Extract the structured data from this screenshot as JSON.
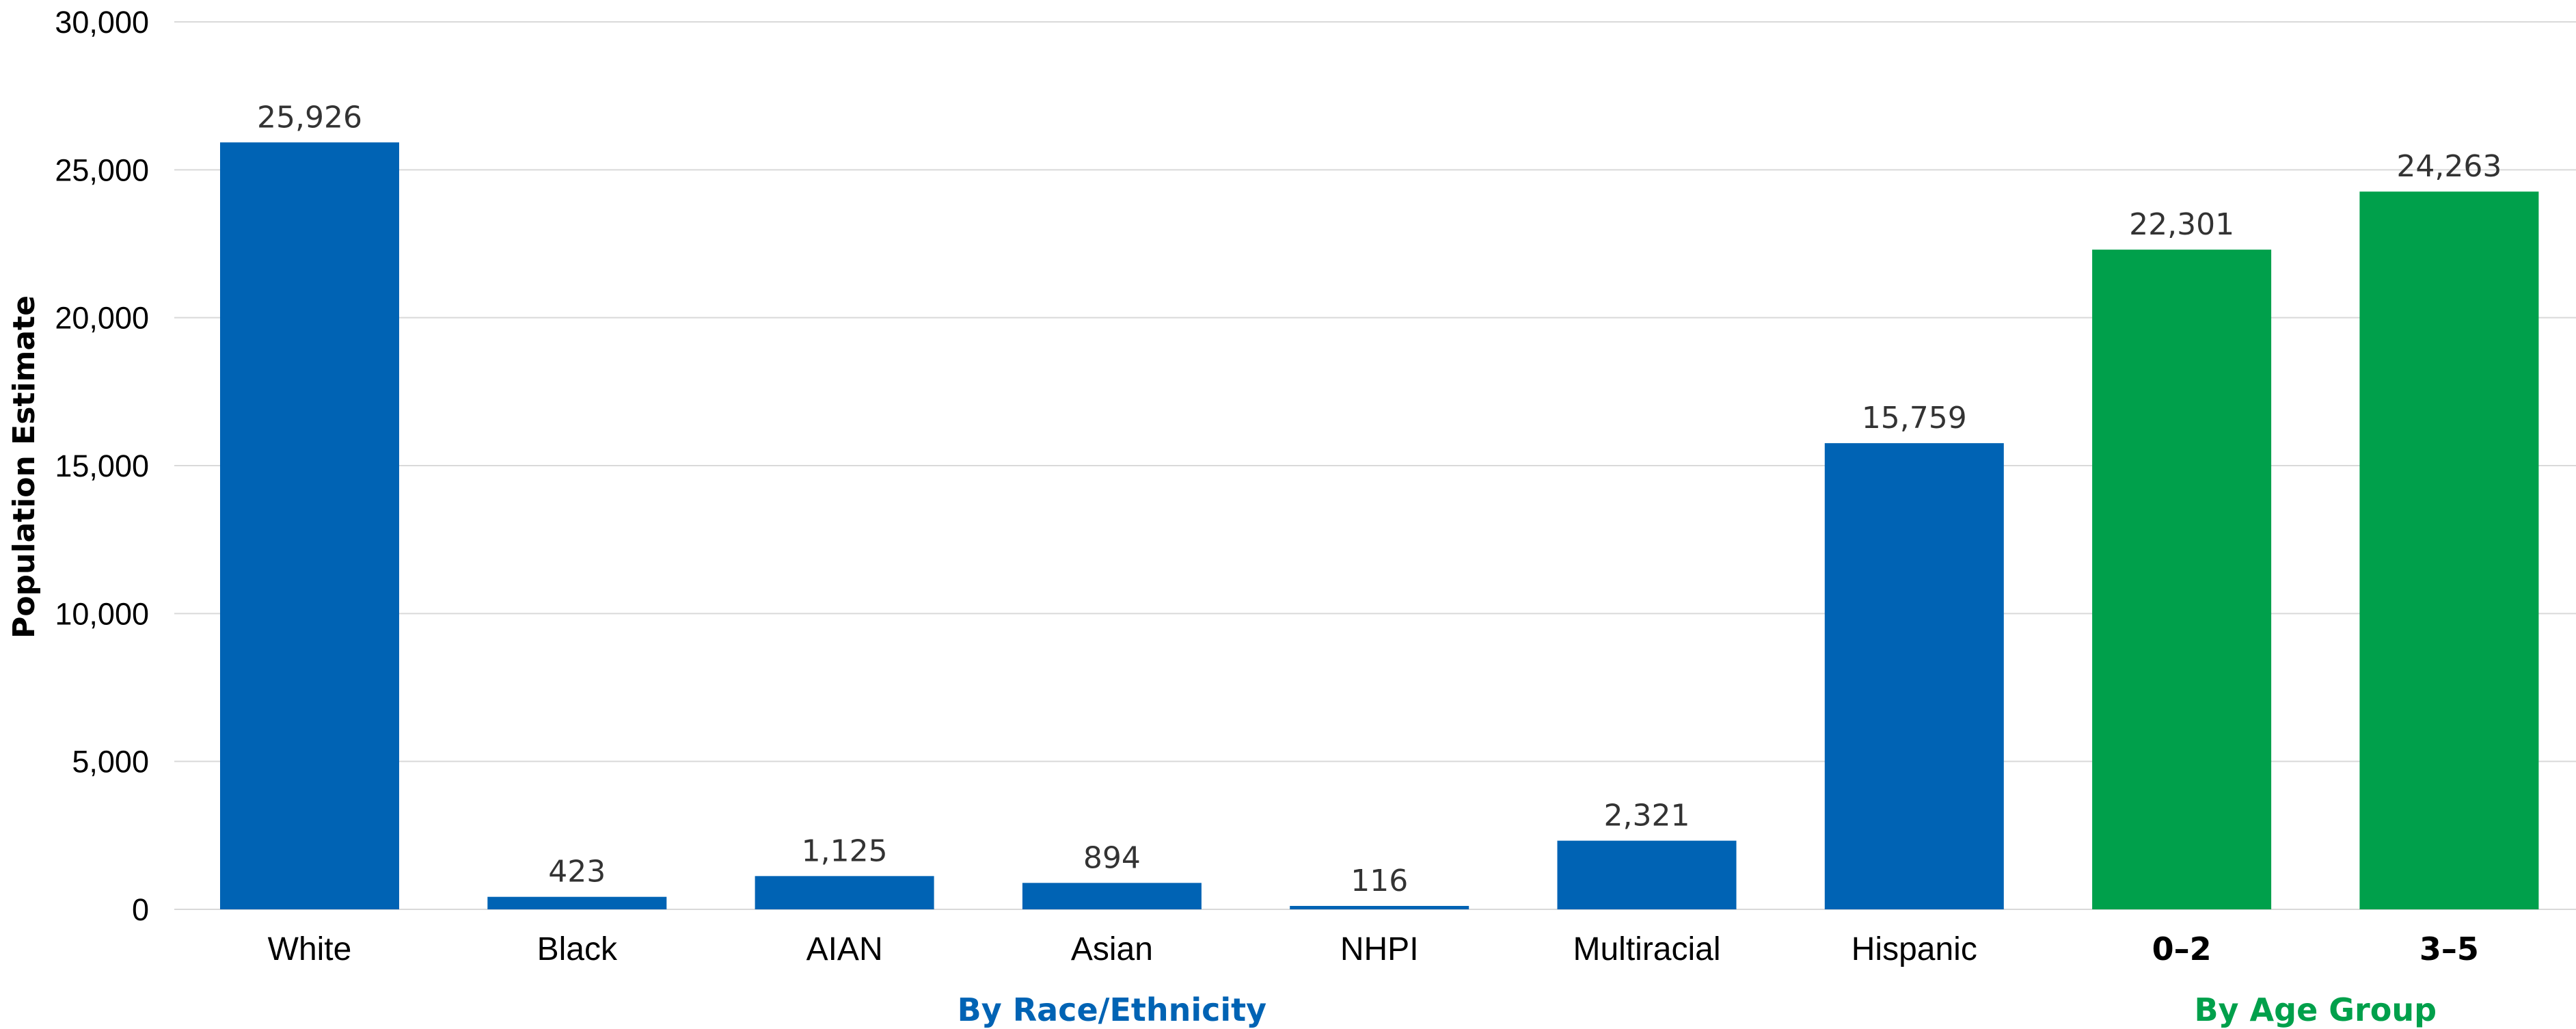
{
  "chart_data": {
    "type": "bar",
    "title": "",
    "ylabel": "Population Estimate",
    "ylim": [
      0,
      30000
    ],
    "yticks": [
      0,
      5000,
      10000,
      15000,
      20000,
      25000,
      30000
    ],
    "ytick_labels": [
      "0",
      "5,000",
      "10,000",
      "15,000",
      "20,000",
      "25,000",
      "30,000"
    ],
    "grid": true,
    "categories": [
      "White",
      "Black",
      "AIAN",
      "Asian",
      "NHPI",
      "Multiracial",
      "Hispanic",
      "0–2",
      "3–5"
    ],
    "values": [
      25926,
      423,
      1125,
      894,
      116,
      2321,
      15759,
      22301,
      24263
    ],
    "data_labels": [
      "25,926",
      "423",
      "1,125",
      "894",
      "116",
      "2,321",
      "15,759",
      "22,301",
      "24,263"
    ],
    "groups": [
      {
        "label": "By Race/Ethnicity",
        "color": "#0063b4",
        "categories": [
          "White",
          "Black",
          "AIAN",
          "Asian",
          "NHPI",
          "Multiracial",
          "Hispanic"
        ]
      },
      {
        "label": "By Age Group",
        "color": "#00a04b",
        "categories": [
          "0–2",
          "3–5"
        ]
      }
    ],
    "bold_categories": [
      "0–2",
      "3–5"
    ]
  }
}
